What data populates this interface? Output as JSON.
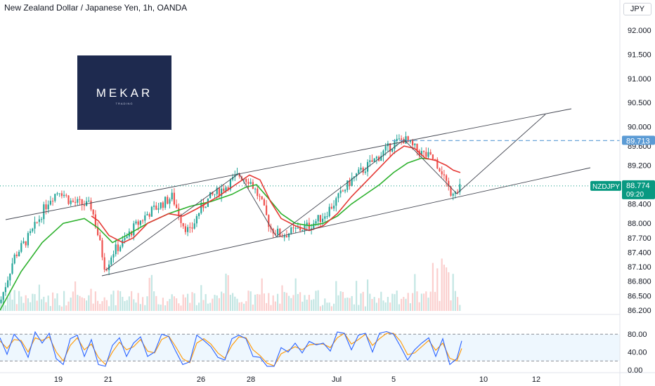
{
  "chart_data": [
    {
      "type": "candlestick",
      "title": "New Zealand Dollar / Japanese Yen, 1h, OANDA",
      "currency": "JPY",
      "symbol": "NZDJPY",
      "last_price": "88.774",
      "countdown": "09:20",
      "marked_level": "89.713",
      "y_ticks": [
        "92.000",
        "91.500",
        "91.000",
        "90.500",
        "90.000",
        "89.600",
        "89.200",
        "88.800",
        "88.400",
        "88.000",
        "87.700",
        "87.400",
        "87.100",
        "86.800",
        "86.500",
        "86.200"
      ],
      "x_ticks": [
        "19",
        "21",
        "26",
        "28",
        "Jul",
        "5",
        "10",
        "12"
      ],
      "ylim": [
        86.2,
        92.3
      ],
      "price_path": [
        [
          0,
          86.35
        ],
        [
          20,
          87.3
        ],
        [
          45,
          87.8
        ],
        [
          70,
          88.5
        ],
        [
          85,
          88.7
        ],
        [
          100,
          88.45
        ],
        [
          130,
          88.35
        ],
        [
          138,
          87.85
        ],
        [
          150,
          87.05
        ],
        [
          160,
          87.4
        ],
        [
          175,
          87.6
        ],
        [
          190,
          87.9
        ],
        [
          210,
          88.2
        ],
        [
          230,
          88.4
        ],
        [
          245,
          88.55
        ],
        [
          260,
          88.0
        ],
        [
          270,
          87.8
        ],
        [
          285,
          88.3
        ],
        [
          300,
          88.55
        ],
        [
          320,
          88.75
        ],
        [
          340,
          89.0
        ],
        [
          355,
          88.9
        ],
        [
          370,
          88.5
        ],
        [
          385,
          87.9
        ],
        [
          400,
          87.75
        ],
        [
          420,
          87.85
        ],
        [
          440,
          87.95
        ],
        [
          460,
          88.15
        ],
        [
          480,
          88.5
        ],
        [
          500,
          88.9
        ],
        [
          520,
          89.15
        ],
        [
          540,
          89.4
        ],
        [
          560,
          89.65
        ],
        [
          575,
          89.75
        ],
        [
          585,
          89.6
        ],
        [
          600,
          89.45
        ],
        [
          620,
          89.3
        ],
        [
          630,
          89.05
        ],
        [
          640,
          88.65
        ],
        [
          650,
          88.75
        ],
        [
          657,
          88.774
        ]
      ],
      "ema_green": [
        [
          0,
          86.2
        ],
        [
          30,
          87.0
        ],
        [
          60,
          87.6
        ],
        [
          90,
          88.0
        ],
        [
          120,
          88.1
        ],
        [
          140,
          87.9
        ],
        [
          160,
          87.6
        ],
        [
          180,
          87.75
        ],
        [
          210,
          88.0
        ],
        [
          240,
          88.2
        ],
        [
          270,
          88.35
        ],
        [
          300,
          88.45
        ],
        [
          330,
          88.6
        ],
        [
          350,
          88.75
        ],
        [
          365,
          88.8
        ],
        [
          380,
          88.55
        ],
        [
          400,
          88.2
        ],
        [
          420,
          88.0
        ],
        [
          440,
          87.95
        ],
        [
          460,
          88.0
        ],
        [
          480,
          88.15
        ],
        [
          500,
          88.4
        ],
        [
          520,
          88.6
        ],
        [
          540,
          88.8
        ],
        [
          560,
          89.05
        ],
        [
          580,
          89.25
        ],
        [
          600,
          89.35
        ],
        [
          610,
          89.33
        ]
      ],
      "ema_red": [
        [
          130,
          88.15
        ],
        [
          140,
          88.05
        ],
        [
          155,
          87.75
        ],
        [
          175,
          87.6
        ],
        [
          190,
          87.7
        ],
        [
          210,
          88.0
        ],
        [
          240,
          88.2
        ],
        [
          260,
          88.15
        ],
        [
          280,
          88.3
        ],
        [
          310,
          88.55
        ],
        [
          340,
          88.85
        ],
        [
          355,
          89.0
        ],
        [
          370,
          88.9
        ],
        [
          385,
          88.45
        ],
        [
          400,
          88.1
        ],
        [
          420,
          87.95
        ],
        [
          440,
          87.85
        ],
        [
          460,
          87.95
        ],
        [
          480,
          88.2
        ],
        [
          500,
          88.55
        ],
        [
          520,
          88.85
        ],
        [
          540,
          89.15
        ],
        [
          560,
          89.45
        ],
        [
          575,
          89.6
        ],
        [
          590,
          89.55
        ],
        [
          605,
          89.35
        ],
        [
          620,
          89.3
        ],
        [
          635,
          89.2
        ],
        [
          645,
          89.1
        ],
        [
          655,
          89.05
        ]
      ],
      "stochastic": {
        "ylim": [
          0,
          100
        ],
        "y_ticks": [
          "80.00",
          "40.00",
          "0.00"
        ],
        "band": [
          20,
          80
        ],
        "k": [
          [
            0,
            72
          ],
          [
            10,
            35
          ],
          [
            20,
            80
          ],
          [
            30,
            62
          ],
          [
            40,
            28
          ],
          [
            50,
            85
          ],
          [
            60,
            60
          ],
          [
            70,
            82
          ],
          [
            80,
            25
          ],
          [
            90,
            12
          ],
          [
            100,
            70
          ],
          [
            110,
            78
          ],
          [
            120,
            30
          ],
          [
            130,
            68
          ],
          [
            140,
            12
          ],
          [
            150,
            8
          ],
          [
            160,
            55
          ],
          [
            170,
            72
          ],
          [
            180,
            30
          ],
          [
            190,
            60
          ],
          [
            200,
            74
          ],
          [
            210,
            30
          ],
          [
            220,
            40
          ],
          [
            230,
            80
          ],
          [
            240,
            75
          ],
          [
            250,
            42
          ],
          [
            260,
            12
          ],
          [
            270,
            18
          ],
          [
            280,
            78
          ],
          [
            290,
            66
          ],
          [
            300,
            52
          ],
          [
            310,
            28
          ],
          [
            320,
            22
          ],
          [
            330,
            70
          ],
          [
            340,
            78
          ],
          [
            350,
            70
          ],
          [
            360,
            30
          ],
          [
            370,
            28
          ],
          [
            380,
            8
          ],
          [
            390,
            8
          ],
          [
            400,
            50
          ],
          [
            410,
            40
          ],
          [
            420,
            60
          ],
          [
            430,
            38
          ],
          [
            440,
            64
          ],
          [
            450,
            56
          ],
          [
            460,
            60
          ],
          [
            470,
            42
          ],
          [
            480,
            85
          ],
          [
            490,
            82
          ],
          [
            500,
            45
          ],
          [
            510,
            78
          ],
          [
            520,
            82
          ],
          [
            530,
            40
          ],
          [
            540,
            82
          ],
          [
            550,
            86
          ],
          [
            560,
            80
          ],
          [
            570,
            52
          ],
          [
            580,
            22
          ],
          [
            590,
            45
          ],
          [
            600,
            60
          ],
          [
            610,
            72
          ],
          [
            620,
            30
          ],
          [
            630,
            70
          ],
          [
            640,
            12
          ],
          [
            650,
            25
          ],
          [
            657,
            65
          ]
        ],
        "d": [
          [
            0,
            65
          ],
          [
            10,
            48
          ],
          [
            20,
            68
          ],
          [
            30,
            66
          ],
          [
            40,
            40
          ],
          [
            50,
            72
          ],
          [
            60,
            66
          ],
          [
            70,
            74
          ],
          [
            80,
            40
          ],
          [
            90,
            20
          ],
          [
            100,
            55
          ],
          [
            110,
            72
          ],
          [
            120,
            45
          ],
          [
            130,
            58
          ],
          [
            140,
            28
          ],
          [
            150,
            12
          ],
          [
            160,
            40
          ],
          [
            170,
            62
          ],
          [
            180,
            45
          ],
          [
            190,
            52
          ],
          [
            200,
            68
          ],
          [
            210,
            42
          ],
          [
            220,
            38
          ],
          [
            230,
            68
          ],
          [
            240,
            76
          ],
          [
            250,
            52
          ],
          [
            260,
            25
          ],
          [
            270,
            16
          ],
          [
            280,
            60
          ],
          [
            290,
            70
          ],
          [
            300,
            58
          ],
          [
            310,
            38
          ],
          [
            320,
            26
          ],
          [
            330,
            55
          ],
          [
            340,
            74
          ],
          [
            350,
            72
          ],
          [
            360,
            45
          ],
          [
            370,
            32
          ],
          [
            380,
            15
          ],
          [
            390,
            9
          ],
          [
            400,
            36
          ],
          [
            410,
            44
          ],
          [
            420,
            52
          ],
          [
            430,
            45
          ],
          [
            440,
            56
          ],
          [
            450,
            58
          ],
          [
            460,
            58
          ],
          [
            470,
            50
          ],
          [
            480,
            72
          ],
          [
            490,
            82
          ],
          [
            500,
            58
          ],
          [
            510,
            68
          ],
          [
            520,
            80
          ],
          [
            530,
            55
          ],
          [
            540,
            70
          ],
          [
            550,
            82
          ],
          [
            560,
            82
          ],
          [
            570,
            64
          ],
          [
            580,
            34
          ],
          [
            590,
            38
          ],
          [
            600,
            52
          ],
          [
            610,
            66
          ],
          [
            620,
            44
          ],
          [
            630,
            60
          ],
          [
            640,
            26
          ],
          [
            650,
            20
          ],
          [
            657,
            48
          ]
        ]
      },
      "colors": {
        "up": "#26a69a",
        "down": "#ef5350",
        "ema_green": "#2db12d",
        "ema_red": "#e53935",
        "stoch_k": "#2962ff",
        "stoch_d": "#ff9800",
        "badge": "#089981",
        "level": "#5b9bd5"
      }
    }
  ],
  "branding": {
    "name": "MEKAR",
    "tagline": "TRADING"
  }
}
